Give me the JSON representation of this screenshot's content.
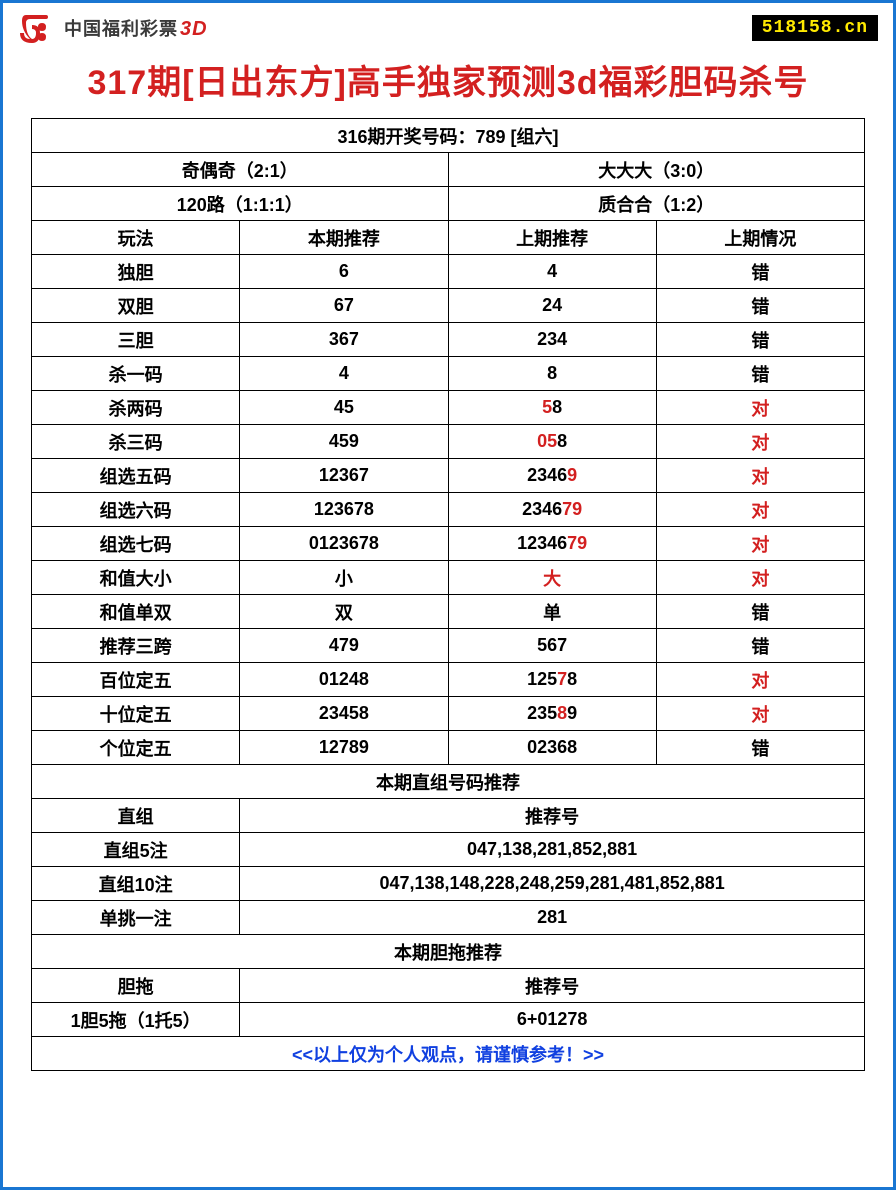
{
  "header": {
    "logo_text": "中国福利彩票",
    "logo_suffix": "3D",
    "site_badge": "518158.cn"
  },
  "title": "317期[日出东方]高手独家预测3d福彩胆码杀号",
  "drawing_result": "316期开奖号码：789 [组六]",
  "stats": {
    "r1c1": "奇偶奇（2:1）",
    "r1c2": "大大大（3:0）",
    "r2c1": "120路（1:1:1）",
    "r2c2": "质合合（1:2）"
  },
  "cols": {
    "c1": "玩法",
    "c2": "本期推荐",
    "c3": "上期推荐",
    "c4": "上期情况"
  },
  "rows": [
    {
      "name": "独胆",
      "cur": "6",
      "prev": [
        {
          "t": "4"
        }
      ],
      "status": "错",
      "status_red": false
    },
    {
      "name": "双胆",
      "cur": "67",
      "prev": [
        {
          "t": "24"
        }
      ],
      "status": "错",
      "status_red": false
    },
    {
      "name": "三胆",
      "cur": "367",
      "prev": [
        {
          "t": "234"
        }
      ],
      "status": "错",
      "status_red": false
    },
    {
      "name": "杀一码",
      "cur": "4",
      "prev": [
        {
          "t": "8"
        }
      ],
      "status": "错",
      "status_red": false
    },
    {
      "name": "杀两码",
      "cur": "45",
      "prev": [
        {
          "t": "5",
          "r": true
        },
        {
          "t": "8"
        }
      ],
      "status": "对",
      "status_red": true
    },
    {
      "name": "杀三码",
      "cur": "459",
      "prev": [
        {
          "t": "05",
          "r": true
        },
        {
          "t": "8"
        }
      ],
      "status": "对",
      "status_red": true
    },
    {
      "name": "组选五码",
      "cur": "12367",
      "prev": [
        {
          "t": "2346"
        },
        {
          "t": "9",
          "r": true
        }
      ],
      "status": "对",
      "status_red": true
    },
    {
      "name": "组选六码",
      "cur": "123678",
      "prev": [
        {
          "t": "2346"
        },
        {
          "t": "79",
          "r": true
        }
      ],
      "status": "对",
      "status_red": true
    },
    {
      "name": "组选七码",
      "cur": "0123678",
      "prev": [
        {
          "t": "12346"
        },
        {
          "t": "79",
          "r": true
        }
      ],
      "status": "对",
      "status_red": true
    },
    {
      "name": "和值大小",
      "cur": "小",
      "prev": [
        {
          "t": "大",
          "r": true
        }
      ],
      "status": "对",
      "status_red": true
    },
    {
      "name": "和值单双",
      "cur": "双",
      "prev": [
        {
          "t": "单"
        }
      ],
      "status": "错",
      "status_red": false
    },
    {
      "name": "推荐三跨",
      "cur": "479",
      "prev": [
        {
          "t": "567"
        }
      ],
      "status": "错",
      "status_red": false
    },
    {
      "name": "百位定五",
      "cur": "01248",
      "prev": [
        {
          "t": "125"
        },
        {
          "t": "7",
          "r": true
        },
        {
          "t": "8"
        }
      ],
      "status": "对",
      "status_red": true
    },
    {
      "name": "十位定五",
      "cur": "23458",
      "prev": [
        {
          "t": "235"
        },
        {
          "t": "8",
          "r": true
        },
        {
          "t": "9"
        }
      ],
      "status": "对",
      "status_red": true
    },
    {
      "name": "个位定五",
      "cur": "12789",
      "prev": [
        {
          "t": "02368"
        }
      ],
      "status": "错",
      "status_red": false
    }
  ],
  "section2_title": "本期直组号码推荐",
  "section2_header": {
    "c1": "直组",
    "c2": "推荐号"
  },
  "section2_rows": [
    {
      "name": "直组5注",
      "val": "047,138,281,852,881"
    },
    {
      "name": "直组10注",
      "val": "047,138,148,228,248,259,281,481,852,881"
    },
    {
      "name": "单挑一注",
      "val": "281"
    }
  ],
  "section3_title": "本期胆拖推荐",
  "section3_header": {
    "c1": "胆拖",
    "c2": "推荐号"
  },
  "section3_rows": [
    {
      "name": "1胆5拖（1托5）",
      "val": "6+01278"
    }
  ],
  "footer": "<<以上仅为个人观点，请谨慎参考！>>",
  "colors": {
    "border": "#1976d2",
    "title": "#d32020",
    "footer": "#1040e0",
    "badge_bg": "#000000",
    "badge_fg": "#ffea00",
    "cell_border": "#000000"
  }
}
